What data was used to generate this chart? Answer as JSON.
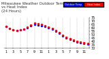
{
  "temp_data": [
    [
      0,
      62
    ],
    [
      1,
      59
    ],
    [
      2,
      57
    ],
    [
      3,
      56
    ],
    [
      4,
      57
    ],
    [
      5,
      58
    ],
    [
      6,
      60
    ],
    [
      7,
      63
    ],
    [
      8,
      65
    ],
    [
      9,
      64
    ],
    [
      10,
      63
    ],
    [
      11,
      62
    ],
    [
      12,
      60
    ],
    [
      13,
      58
    ],
    [
      14,
      55
    ],
    [
      15,
      52
    ],
    [
      16,
      48
    ],
    [
      17,
      45
    ],
    [
      18,
      43
    ],
    [
      19,
      41
    ],
    [
      20,
      39
    ],
    [
      21,
      38
    ],
    [
      22,
      37
    ],
    [
      23,
      36
    ]
  ],
  "heat_data": [
    [
      0,
      62
    ],
    [
      1,
      59
    ],
    [
      2,
      57
    ],
    [
      3,
      56
    ],
    [
      4,
      57
    ],
    [
      5,
      58
    ],
    [
      6,
      61
    ],
    [
      7,
      64
    ],
    [
      8,
      67
    ],
    [
      9,
      66
    ],
    [
      10,
      65
    ],
    [
      11,
      63
    ],
    [
      12,
      61
    ],
    [
      13,
      59
    ],
    [
      14,
      56
    ],
    [
      15,
      53
    ],
    [
      16,
      49
    ],
    [
      17,
      46
    ],
    [
      18,
      44
    ],
    [
      19,
      42
    ],
    [
      20,
      40
    ],
    [
      21,
      39
    ],
    [
      22,
      38
    ],
    [
      23,
      37
    ]
  ],
  "temp_color": "#0000ff",
  "heat_color": "#ff0000",
  "bg_color": "#ffffff",
  "ylim": [
    30,
    75
  ],
  "xlim": [
    -0.5,
    23.5
  ],
  "legend_temp": "Outdoor Temp",
  "legend_heat": "Heat Index",
  "marker_size": 2,
  "grid_color": "#aaaaaa",
  "title_fontsize": 4,
  "tick_fontsize": 3.5,
  "xtick_positions": [
    0,
    2,
    4,
    6,
    8,
    10,
    12,
    14,
    16,
    18,
    20,
    22
  ],
  "xtick_labels": [
    "1",
    "3",
    "5",
    "7",
    "9",
    "11",
    "1",
    "3",
    "5",
    "7",
    "9",
    "11"
  ],
  "ytick_positions": [
    30,
    35,
    40,
    45,
    50,
    55,
    60,
    65,
    70,
    75
  ],
  "ytick_labels": [
    "30",
    "35",
    "40",
    "45",
    "50",
    "55",
    "60",
    "65",
    "70",
    "75"
  ]
}
